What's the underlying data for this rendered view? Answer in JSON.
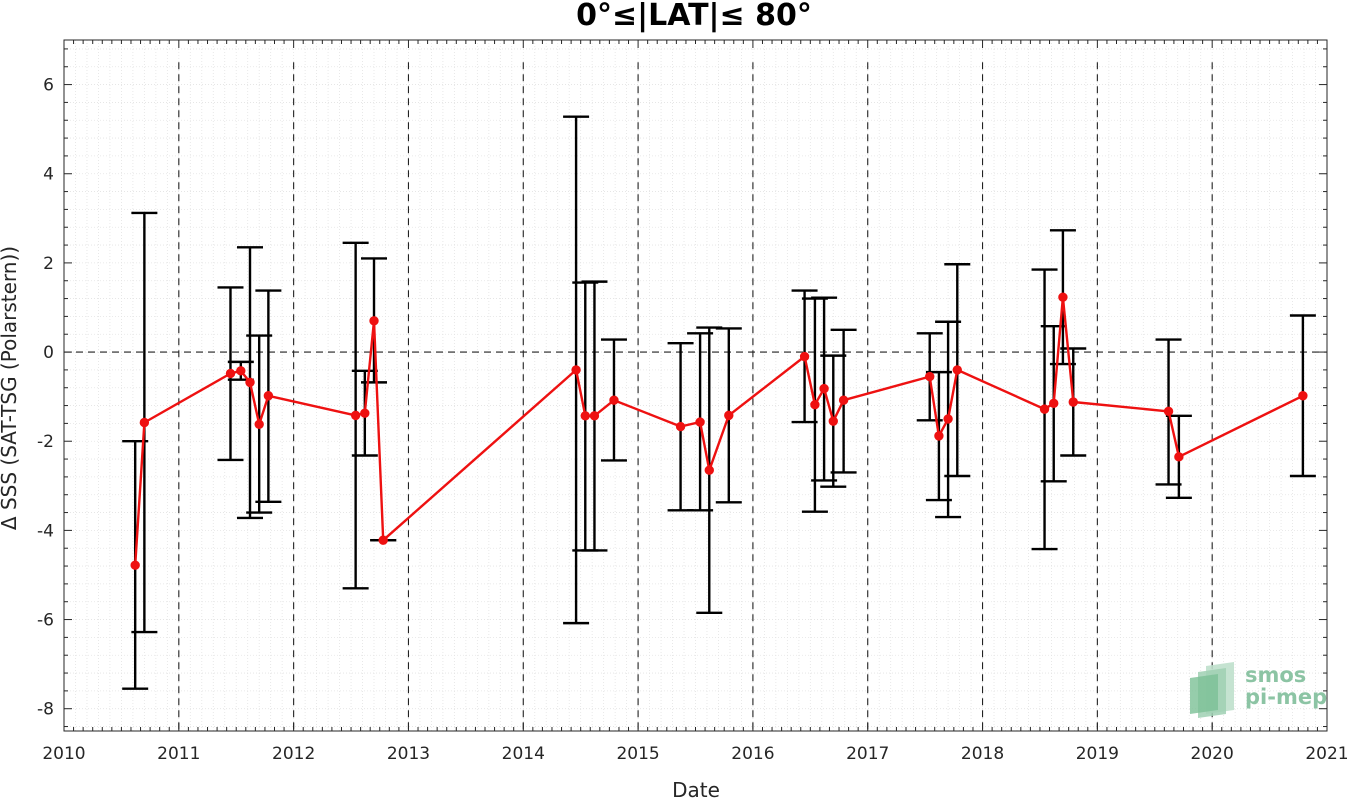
{
  "chart_data": {
    "type": "line",
    "title": "0°≤|LAT|≤ 80°",
    "xlabel": "Date",
    "ylabel": "Δ SSS (SAT-TSG (Polarstern))",
    "xlim": [
      2010,
      2021
    ],
    "ylim": [
      -8.5,
      7.0
    ],
    "x_ticks": [
      2010,
      2011,
      2012,
      2013,
      2014,
      2015,
      2016,
      2017,
      2018,
      2019,
      2020,
      2021
    ],
    "y_ticks": [
      -8,
      -6,
      -4,
      -2,
      0,
      2,
      4,
      6
    ],
    "vertical_dashed_lines": [
      2011,
      2012,
      2013,
      2014,
      2015,
      2016,
      2017,
      2018,
      2019,
      2020
    ],
    "horizontal_dashed_line": 0,
    "grid": "minor dotted",
    "series": [
      {
        "line_color": "#ee1111",
        "errorbar_color": "#000000",
        "points": [
          {
            "x": 2010.62,
            "y": -4.78,
            "lo": -7.55,
            "hi": -2.0
          },
          {
            "x": 2010.7,
            "y": -1.58,
            "lo": -6.28,
            "hi": 3.12
          },
          {
            "x": 2011.45,
            "y": -0.48,
            "lo": -2.42,
            "hi": 1.45
          },
          {
            "x": 2011.54,
            "y": -0.42,
            "lo": -0.62,
            "hi": -0.22
          },
          {
            "x": 2011.62,
            "y": -0.68,
            "lo": -3.72,
            "hi": 2.35
          },
          {
            "x": 2011.7,
            "y": -1.62,
            "lo": -3.6,
            "hi": 0.37
          },
          {
            "x": 2011.78,
            "y": -0.98,
            "lo": -3.36,
            "hi": 1.38
          },
          {
            "x": 2012.54,
            "y": -1.42,
            "lo": -5.3,
            "hi": 2.45
          },
          {
            "x": 2012.62,
            "y": -1.37,
            "lo": -2.32,
            "hi": -0.42
          },
          {
            "x": 2012.7,
            "y": 0.7,
            "lo": -0.68,
            "hi": 2.1
          },
          {
            "x": 2012.78,
            "y": -4.22,
            "lo": -4.22,
            "hi": -4.22
          },
          {
            "x": 2014.46,
            "y": -0.4,
            "lo": -6.08,
            "hi": 5.28
          },
          {
            "x": 2014.54,
            "y": -1.43,
            "lo": -4.45,
            "hi": 1.56
          },
          {
            "x": 2014.62,
            "y": -1.43,
            "lo": -4.45,
            "hi": 1.58
          },
          {
            "x": 2014.79,
            "y": -1.08,
            "lo": -2.43,
            "hi": 0.28
          },
          {
            "x": 2015.37,
            "y": -1.67,
            "lo": -3.55,
            "hi": 0.2
          },
          {
            "x": 2015.54,
            "y": -1.57,
            "lo": -3.55,
            "hi": 0.42
          },
          {
            "x": 2015.62,
            "y": -2.65,
            "lo": -5.85,
            "hi": 0.55
          },
          {
            "x": 2015.79,
            "y": -1.42,
            "lo": -3.37,
            "hi": 0.53
          },
          {
            "x": 2016.45,
            "y": -0.1,
            "lo": -1.57,
            "hi": 1.38
          },
          {
            "x": 2016.54,
            "y": -1.18,
            "lo": -3.58,
            "hi": 1.2
          },
          {
            "x": 2016.62,
            "y": -0.82,
            "lo": -2.88,
            "hi": 1.22
          },
          {
            "x": 2016.7,
            "y": -1.55,
            "lo": -3.02,
            "hi": -0.08
          },
          {
            "x": 2016.79,
            "y": -1.08,
            "lo": -2.7,
            "hi": 0.5
          },
          {
            "x": 2017.54,
            "y": -0.55,
            "lo": -1.53,
            "hi": 0.42
          },
          {
            "x": 2017.62,
            "y": -1.88,
            "lo": -3.32,
            "hi": -0.45
          },
          {
            "x": 2017.7,
            "y": -1.5,
            "lo": -3.7,
            "hi": 0.68
          },
          {
            "x": 2017.78,
            "y": -0.4,
            "lo": -2.78,
            "hi": 1.97
          },
          {
            "x": 2018.54,
            "y": -1.28,
            "lo": -4.42,
            "hi": 1.85
          },
          {
            "x": 2018.62,
            "y": -1.15,
            "lo": -2.9,
            "hi": 0.58
          },
          {
            "x": 2018.7,
            "y": 1.23,
            "lo": -0.27,
            "hi": 2.73
          },
          {
            "x": 2018.79,
            "y": -1.12,
            "lo": -2.32,
            "hi": 0.08
          },
          {
            "x": 2019.62,
            "y": -1.33,
            "lo": -2.97,
            "hi": 0.28
          },
          {
            "x": 2019.71,
            "y": -2.35,
            "lo": -3.27,
            "hi": -1.43
          },
          {
            "x": 2020.79,
            "y": -0.98,
            "lo": -2.78,
            "hi": 0.82
          }
        ]
      }
    ]
  },
  "logo": {
    "line1": "smos",
    "line2": "pi-mep"
  }
}
